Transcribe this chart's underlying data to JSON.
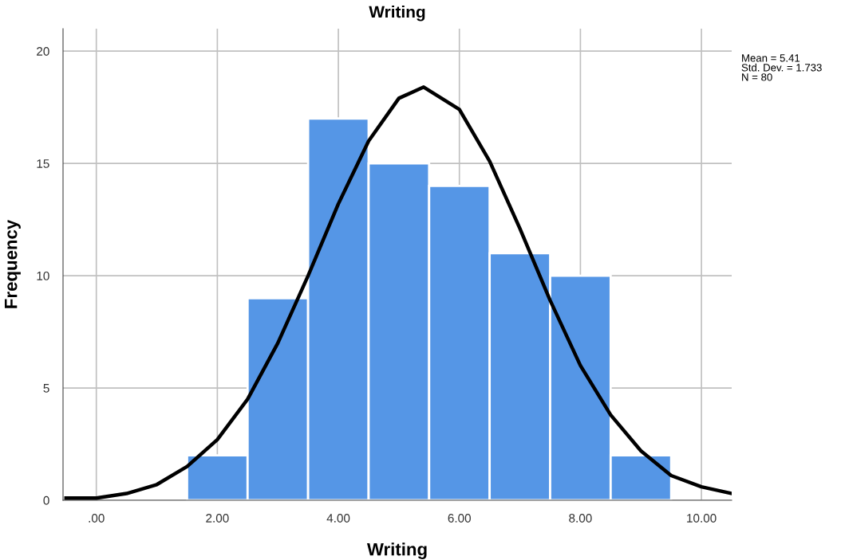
{
  "chart_data": {
    "type": "histogram",
    "title": "Writing",
    "xlabel": "Writing",
    "ylabel": "Frequency",
    "bins": [
      1.5,
      2.5,
      3.5,
      4.5,
      5.5,
      6.5,
      7.5,
      8.5,
      9.5
    ],
    "values": [
      2,
      9,
      17,
      15,
      14,
      11,
      10,
      2
    ],
    "color": "#5596e6",
    "series": [
      {
        "type": "line",
        "color": "#000000",
        "x": [
          -0.5,
          0,
          0.5,
          1,
          1.5,
          2,
          2.5,
          3,
          3.5,
          4,
          4.5,
          5,
          5.41,
          6,
          6.5,
          7,
          7.5,
          8,
          8.5,
          9,
          9.5,
          10,
          10.5
        ],
        "values": [
          0.1,
          0.1,
          0.3,
          0.7,
          1.5,
          2.7,
          4.5,
          7.0,
          10.0,
          13.2,
          16.0,
          17.9,
          18.4,
          17.4,
          15.1,
          12.1,
          8.9,
          6.0,
          3.8,
          2.2,
          1.1,
          0.6,
          0.3
        ]
      }
    ],
    "xlim": [
      -0.55,
      10.5
    ],
    "xticks": [
      {
        "value": 0,
        "label": ".00"
      },
      {
        "value": 2,
        "label": "2.00"
      },
      {
        "value": 4,
        "label": "4.00"
      },
      {
        "value": 6,
        "label": "6.00"
      },
      {
        "value": 8,
        "label": "8.00"
      },
      {
        "value": 10,
        "label": "10.00"
      }
    ],
    "ylim": [
      0,
      21
    ],
    "yticks": [
      0,
      5,
      10,
      15,
      20
    ],
    "grid": true,
    "line_style": "solid",
    "marker": "none",
    "annotations": [
      "Mean = 5.41",
      "Std. Dev. = 1.733",
      "N = 80"
    ]
  }
}
